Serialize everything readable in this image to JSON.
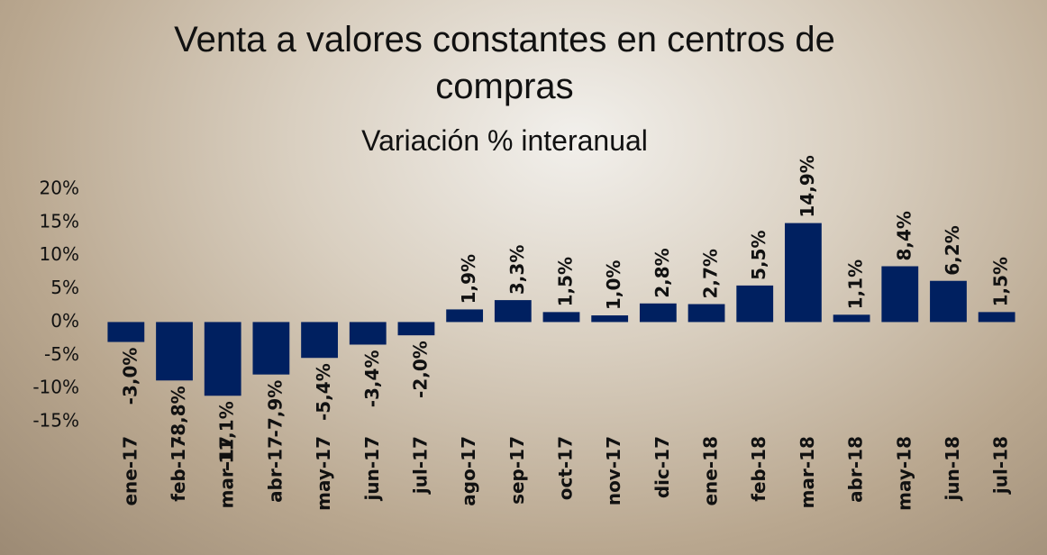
{
  "chart_data": {
    "type": "bar",
    "title": "Venta a valores constantes en centros de compras",
    "subtitle": "Variación % interanual",
    "categories": [
      "ene-17",
      "feb-17",
      "mar-17",
      "abr-17",
      "may-17",
      "jun-17",
      "jul-17",
      "ago-17",
      "sep-17",
      "oct-17",
      "nov-17",
      "dic-17",
      "ene-18",
      "feb-18",
      "mar-18",
      "abr-18",
      "may-18",
      "jun-18",
      "jul-18"
    ],
    "values": [
      -3.0,
      -8.8,
      -11.1,
      -7.9,
      -5.4,
      -3.4,
      -2.0,
      1.9,
      3.3,
      1.5,
      1.0,
      2.8,
      2.7,
      5.5,
      14.9,
      1.1,
      8.4,
      6.2,
      1.5
    ],
    "value_labels": [
      "-3,0%",
      "-8,8%",
      "-11,1%",
      "-7,9%",
      "-5,4%",
      "-3,4%",
      "-2,0%",
      "1,9%",
      "3,3%",
      "1,5%",
      "1,0%",
      "2,8%",
      "2,7%",
      "5,5%",
      "14,9%",
      "1,1%",
      "8,4%",
      "6,2%",
      "1,5%"
    ],
    "color": "#002060",
    "ylim": [
      -15,
      20
    ],
    "yticks": [
      {
        "value": -15,
        "label": "-15%"
      },
      {
        "value": -10,
        "label": "-10%"
      },
      {
        "value": -5,
        "label": "-5%"
      },
      {
        "value": 0,
        "label": "0%"
      },
      {
        "value": 5,
        "label": "5%"
      },
      {
        "value": 10,
        "label": "10%"
      },
      {
        "value": 15,
        "label": "15%"
      },
      {
        "value": 20,
        "label": "20%"
      }
    ],
    "grid": false
  }
}
